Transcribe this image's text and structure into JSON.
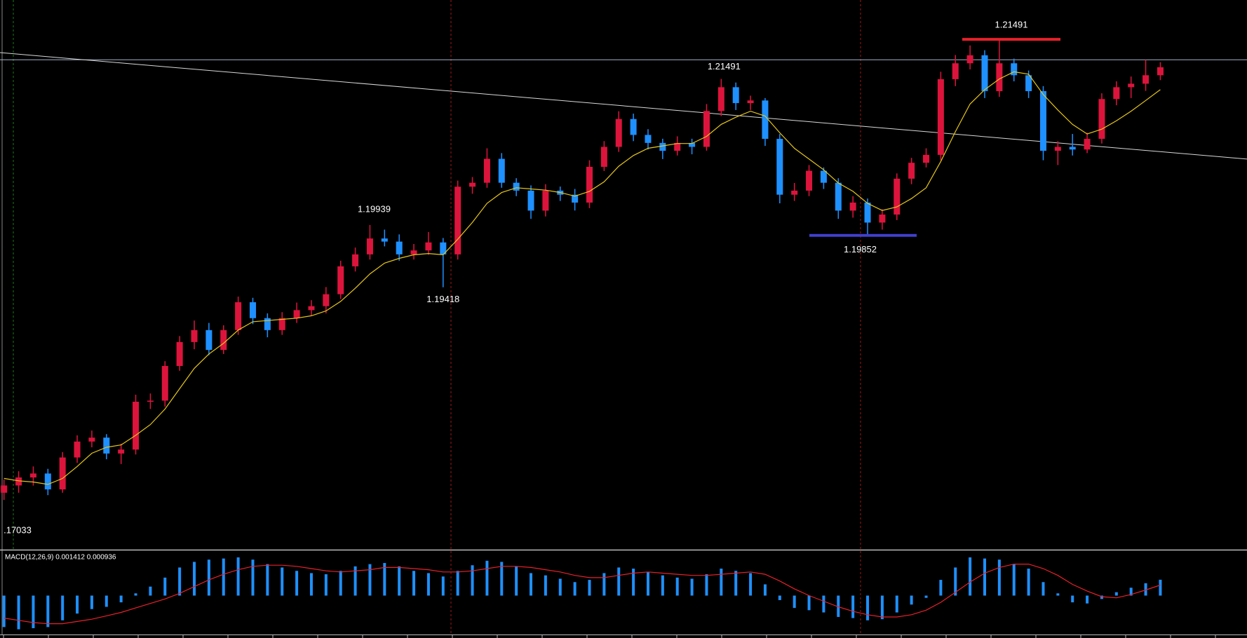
{
  "chart_data": {
    "type": "candlestick",
    "ylim": [
      1.1723,
      1.2182
    ],
    "up_color": "#dc143c",
    "down_color": "#1e90ff",
    "ohlc": [
      [
        1.177,
        1.1781,
        1.1764,
        1.17761
      ],
      [
        1.17761,
        1.1788,
        1.177,
        1.17828
      ],
      [
        1.17828,
        1.1792,
        1.1776,
        1.17861
      ],
      [
        1.17861,
        1.179,
        1.1768,
        1.17728
      ],
      [
        1.17728,
        1.1804,
        1.177,
        1.17995
      ],
      [
        1.17995,
        1.1818,
        1.1795,
        1.18128
      ],
      [
        1.18128,
        1.1822,
        1.1808,
        1.18161
      ],
      [
        1.18161,
        1.1819,
        1.1798,
        1.18028
      ],
      [
        1.18028,
        1.1811,
        1.1794,
        1.18061
      ],
      [
        1.18061,
        1.1852,
        1.1802,
        1.18461
      ],
      [
        1.18461,
        1.1853,
        1.184,
        1.1847
      ],
      [
        1.1847,
        1.188,
        1.1842,
        1.1876
      ],
      [
        1.1876,
        1.1901,
        1.1872,
        1.1896
      ],
      [
        1.1896,
        1.1914,
        1.189,
        1.1906
      ],
      [
        1.1906,
        1.1912,
        1.1885,
        1.18894
      ],
      [
        1.18894,
        1.191,
        1.1886,
        1.1906
      ],
      [
        1.1906,
        1.1934,
        1.1902,
        1.19293
      ],
      [
        1.19293,
        1.1933,
        1.1911,
        1.1916
      ],
      [
        1.1916,
        1.192,
        1.19,
        1.1906
      ],
      [
        1.1906,
        1.1921,
        1.1902,
        1.1916
      ],
      [
        1.1916,
        1.1929,
        1.1912,
        1.19227
      ],
      [
        1.19227,
        1.1931,
        1.1918,
        1.1926
      ],
      [
        1.1926,
        1.1942,
        1.192,
        1.1936
      ],
      [
        1.1936,
        1.1964,
        1.1932,
        1.19593
      ],
      [
        1.19593,
        1.1975,
        1.1955,
        1.19693
      ],
      [
        1.19693,
        1.19939,
        1.1965,
        1.19826
      ],
      [
        1.19826,
        1.199,
        1.1976,
        1.198
      ],
      [
        1.198,
        1.1986,
        1.1964,
        1.19693
      ],
      [
        1.19693,
        1.1978,
        1.1965,
        1.19726
      ],
      [
        1.19726,
        1.1988,
        1.1969,
        1.19793
      ],
      [
        1.19793,
        1.1983,
        1.19418,
        1.19693
      ],
      [
        1.19693,
        1.2031,
        1.1965,
        1.20259
      ],
      [
        1.20259,
        1.2034,
        1.202,
        1.20292
      ],
      [
        1.20292,
        1.2058,
        1.2025,
        1.20492
      ],
      [
        1.20492,
        1.2054,
        1.2025,
        1.20292
      ],
      [
        1.20292,
        1.2033,
        1.2018,
        1.20226
      ],
      [
        1.20226,
        1.2027,
        1.1999,
        1.20059
      ],
      [
        1.20059,
        1.2028,
        1.2001,
        1.20226
      ],
      [
        1.20226,
        1.2026,
        1.2014,
        1.20192
      ],
      [
        1.20192,
        1.2024,
        1.2006,
        1.20126
      ],
      [
        1.20126,
        1.2048,
        1.2008,
        1.20425
      ],
      [
        1.20425,
        1.2064,
        1.2039,
        1.20592
      ],
      [
        1.20592,
        1.2089,
        1.2055,
        1.20825
      ],
      [
        1.20825,
        1.2087,
        1.2064,
        1.20692
      ],
      [
        1.20692,
        1.2074,
        1.2057,
        1.20625
      ],
      [
        1.20625,
        1.2066,
        1.2049,
        1.20559
      ],
      [
        1.20559,
        1.2068,
        1.2052,
        1.20625
      ],
      [
        1.20625,
        1.2066,
        1.2053,
        1.20592
      ],
      [
        1.20592,
        1.2095,
        1.2056,
        1.20892
      ],
      [
        1.20892,
        1.2116,
        1.2085,
        1.21091
      ],
      [
        1.21091,
        1.2113,
        1.209,
        1.20958
      ],
      [
        1.20958,
        1.2102,
        1.209,
        1.2098
      ],
      [
        1.2098,
        1.21,
        1.206,
        1.20659
      ],
      [
        1.20659,
        1.207,
        1.2012,
        1.20192
      ],
      [
        1.20192,
        1.2029,
        1.2014,
        1.20226
      ],
      [
        1.20226,
        1.2044,
        1.2018,
        1.20392
      ],
      [
        1.20392,
        1.2042,
        1.2024,
        1.20292
      ],
      [
        1.20292,
        1.2033,
        1.1999,
        1.20059
      ],
      [
        1.20059,
        1.2018,
        1.2,
        1.20126
      ],
      [
        1.20126,
        1.2016,
        1.19852,
        1.19959
      ],
      [
        1.19959,
        1.2007,
        1.199,
        1.20026
      ],
      [
        1.20026,
        1.2037,
        1.1998,
        1.20326
      ],
      [
        1.20326,
        1.205,
        1.2028,
        1.20459
      ],
      [
        1.20459,
        1.2058,
        1.2042,
        1.20525
      ],
      [
        1.20525,
        1.2122,
        1.2048,
        1.21158
      ],
      [
        1.21158,
        1.2136,
        1.211,
        1.21291
      ],
      [
        1.21291,
        1.2144,
        1.2124,
        1.21358
      ],
      [
        1.21358,
        1.214,
        1.21,
        1.21058
      ],
      [
        1.21058,
        1.21491,
        1.2101,
        1.21291
      ],
      [
        1.21291,
        1.2133,
        1.2114,
        1.21191
      ],
      [
        1.21191,
        1.2123,
        1.21,
        1.21058
      ],
      [
        1.21058,
        1.211,
        1.2048,
        1.20559
      ],
      [
        1.20559,
        1.2064,
        1.2044,
        1.20592
      ],
      [
        1.20592,
        1.207,
        1.2052,
        1.2057
      ],
      [
        1.2057,
        1.2071,
        1.2054,
        1.20659
      ],
      [
        1.20659,
        1.2104,
        1.2062,
        1.20992
      ],
      [
        1.20992,
        1.2114,
        1.2094,
        1.21091
      ],
      [
        1.21091,
        1.2118,
        1.21,
        1.2112
      ],
      [
        1.2112,
        1.2132,
        1.2106,
        1.21191
      ],
      [
        1.21191,
        1.213,
        1.2115,
        1.21258
      ]
    ],
    "ma": {
      "color": "#e6c619",
      "values": [
        1.1782,
        1.178,
        1.1779,
        1.1777,
        1.1782,
        1.1792,
        1.1803,
        1.1808,
        1.181,
        1.1818,
        1.1827,
        1.184,
        1.1857,
        1.1874,
        1.1886,
        1.1895,
        1.1906,
        1.1913,
        1.1914,
        1.1915,
        1.1916,
        1.1918,
        1.1922,
        1.193,
        1.1941,
        1.1953,
        1.1962,
        1.1966,
        1.1969,
        1.197,
        1.1969,
        1.1982,
        1.1996,
        1.2012,
        1.2021,
        1.2025,
        1.2024,
        1.2023,
        1.2021,
        1.2018,
        1.2022,
        1.203,
        1.2043,
        1.2052,
        1.2058,
        1.206,
        1.2062,
        1.2062,
        1.2068,
        1.2078,
        1.2084,
        1.2089,
        1.2085,
        1.2071,
        1.2058,
        1.2049,
        1.204,
        1.2029,
        1.2022,
        1.2012,
        1.2006,
        1.2009,
        1.2016,
        1.2025,
        1.2047,
        1.2072,
        1.2095,
        1.2107,
        1.2116,
        1.2122,
        1.212,
        1.2103,
        1.209,
        1.2078,
        1.207,
        1.2074,
        1.2081,
        1.2089,
        1.2098,
        1.2107
      ]
    },
    "horizontal_line": {
      "value": 1.2132,
      "color": "#9fb3c8"
    },
    "trend_line": {
      "values": [
        1.2138,
        1.2049
      ],
      "color": "#d8d8d8"
    },
    "levels": [
      {
        "value": 1.21491,
        "color": "#e8202a"
      },
      {
        "value": 1.19852,
        "color": "#4040d0"
      }
    ],
    "annotations": [
      "1.21491",
      "1.19939",
      "1.19418",
      "1.19852",
      "1.21491",
      ".17033"
    ],
    "macd": {
      "label": "MACD(12,26,9) 0.001412 0.000936",
      "ylim": [
        -0.0034,
        0.0039
      ],
      "histogram": {
        "color": "#1e90ff",
        "values": [
          -0.0028,
          -0.003,
          -0.0029,
          -0.0028,
          -0.0022,
          -0.0016,
          -0.0012,
          -0.001,
          -0.0006,
          0.0002,
          0.0008,
          0.0016,
          0.0025,
          0.003,
          0.0032,
          0.0033,
          0.0034,
          0.0032,
          0.0028,
          0.0025,
          0.0022,
          0.002,
          0.0019,
          0.0022,
          0.0026,
          0.0028,
          0.0029,
          0.0026,
          0.0022,
          0.002,
          0.0017,
          0.0022,
          0.0027,
          0.0031,
          0.003,
          0.0026,
          0.002,
          0.0018,
          0.0015,
          0.0012,
          0.0014,
          0.002,
          0.0025,
          0.0024,
          0.0021,
          0.0018,
          0.0016,
          0.0015,
          0.0019,
          0.0024,
          0.0022,
          0.002,
          0.001,
          -0.0004,
          -0.0011,
          -0.0013,
          -0.0015,
          -0.0019,
          -0.002,
          -0.0022,
          -0.0021,
          -0.0015,
          -0.0008,
          -0.0002,
          0.0014,
          0.0025,
          0.0034,
          0.0033,
          0.0032,
          0.0028,
          0.0024,
          0.0012,
          0.0002,
          -0.0006,
          -0.0007,
          -0.0003,
          0.0003,
          0.0007,
          0.0011,
          0.001412
        ]
      },
      "signal": {
        "color": "#e8202a",
        "values": [
          -0.002,
          -0.0022,
          -0.0024,
          -0.0025,
          -0.0025,
          -0.0023,
          -0.0021,
          -0.0018,
          -0.0015,
          -0.0011,
          -0.0007,
          -0.0003,
          0.0002,
          0.0008,
          0.0014,
          0.0019,
          0.0023,
          0.0026,
          0.0027,
          0.0027,
          0.0026,
          0.0024,
          0.0022,
          0.0021,
          0.0022,
          0.0023,
          0.0025,
          0.0025,
          0.0024,
          0.0023,
          0.0021,
          0.0021,
          0.0022,
          0.0024,
          0.0026,
          0.0026,
          0.0025,
          0.0023,
          0.0021,
          0.0018,
          0.0016,
          0.0016,
          0.0018,
          0.002,
          0.0021,
          0.002,
          0.0019,
          0.0018,
          0.0018,
          0.0019,
          0.002,
          0.0021,
          0.0019,
          0.0013,
          0.0006,
          0.0,
          -0.0005,
          -0.001,
          -0.0014,
          -0.0017,
          -0.0019,
          -0.0019,
          -0.0017,
          -0.0013,
          -0.0006,
          0.0003,
          0.0012,
          0.002,
          0.0025,
          0.0028,
          0.0028,
          0.0024,
          0.0018,
          0.001,
          0.0004,
          -0.0001,
          -0.0002,
          0.0001,
          0.0005,
          0.000936
        ]
      }
    }
  }
}
